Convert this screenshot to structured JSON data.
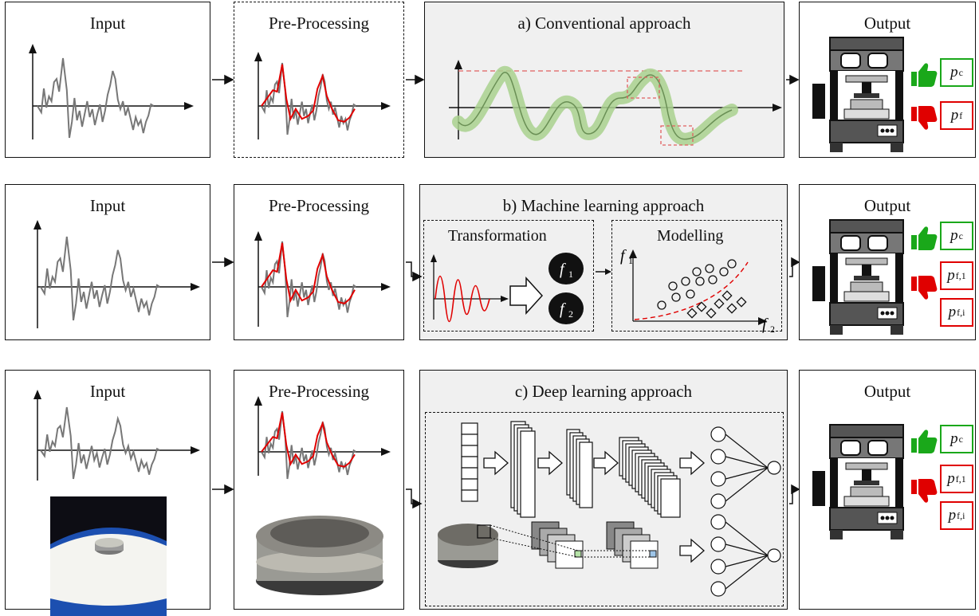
{
  "colors": {
    "signal": "#777777",
    "filtered": "#e00000",
    "accept": "#1aa81a",
    "reject": "#e00000",
    "panel": "#f0f0f0",
    "smooth": "#a9d18e"
  },
  "rows": [
    {
      "input_title": "Input",
      "pre_title": "Pre-Processing",
      "approach_title": "a) Conventional approach",
      "output_title": "Output",
      "outputs": [
        {
          "sym": "p",
          "sub": "c",
          "status": "accept"
        },
        {
          "sym": "p",
          "sub": "f",
          "status": "reject"
        }
      ]
    },
    {
      "input_title": "Input",
      "pre_title": "Pre-Processing",
      "approach_title": "b) Machine learning approach",
      "output_title": "Output",
      "transformation_label": "Transformation",
      "modelling_label": "Modelling",
      "feature_1": "f",
      "feature_1_sub": "1",
      "feature_2": "f",
      "feature_2_sub": "2",
      "axis_y": "f",
      "axis_y_sub": "1",
      "axis_x": "f",
      "axis_x_sub": "2",
      "outputs": [
        {
          "sym": "p",
          "sub": "c",
          "status": "accept"
        },
        {
          "sym": "p",
          "sub": "f,1",
          "status": "reject"
        },
        {
          "sym": "p",
          "sub": "f,i",
          "status": "reject"
        }
      ]
    },
    {
      "input_title": "Input",
      "pre_title": "Pre-Processing",
      "approach_title": "c) Deep learning approach",
      "output_title": "Output",
      "outputs": [
        {
          "sym": "p",
          "sub": "c",
          "status": "accept"
        },
        {
          "sym": "p",
          "sub": "f,1",
          "status": "reject"
        },
        {
          "sym": "p",
          "sub": "f,i",
          "status": "reject"
        }
      ]
    }
  ],
  "icons": [
    "thumbs-up-icon",
    "thumbs-down-icon",
    "press-machine-icon",
    "arrow-right-icon",
    "neural-network-icon",
    "cnn-layers-icon",
    "pellet-photo-icon"
  ]
}
